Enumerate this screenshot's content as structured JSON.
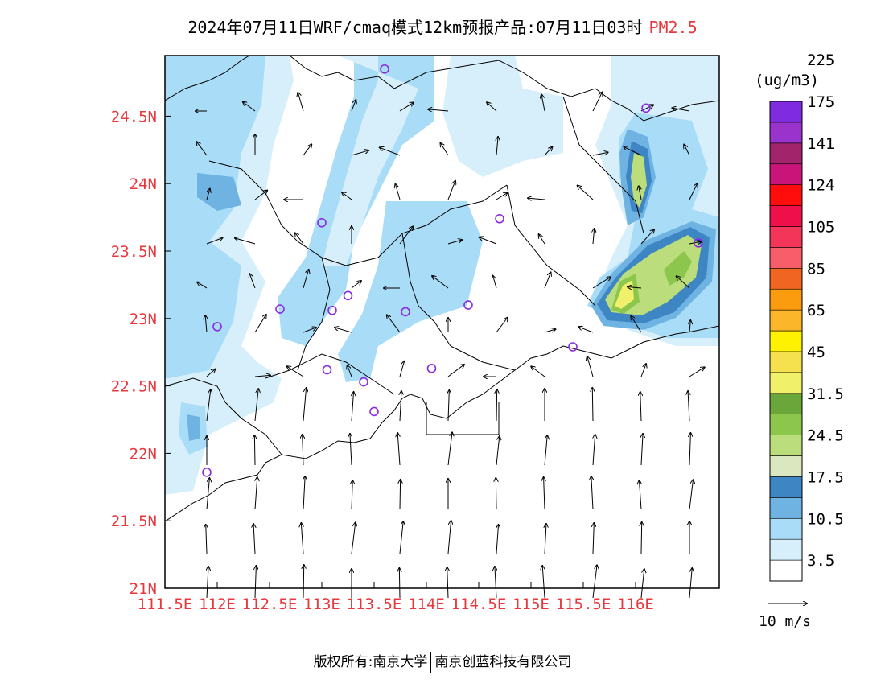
{
  "title": {
    "main": "2024年07月11日WRF/cmaq模式12km预报产品:07月11日03时",
    "species": "PM2.5"
  },
  "map": {
    "lon_range": [
      111.5,
      116.8
    ],
    "lat_range": [
      21.0,
      24.95
    ],
    "lon_ticks": [
      "111.5E",
      "112E",
      "112.5E",
      "113E",
      "113.5E",
      "114E",
      "114.5E",
      "115E",
      "115.5E",
      "116E"
    ],
    "lat_ticks": [
      "21N",
      "21.5N",
      "22N",
      "22.5N",
      "23N",
      "23.5N",
      "24N",
      "24.5N"
    ],
    "tick_color": "#e8383d",
    "stations": [
      {
        "lon": 113.6,
        "lat": 24.85
      },
      {
        "lon": 116.1,
        "lat": 24.56
      },
      {
        "lon": 113.0,
        "lat": 23.71
      },
      {
        "lon": 114.7,
        "lat": 23.74
      },
      {
        "lon": 116.6,
        "lat": 23.56
      },
      {
        "lon": 113.25,
        "lat": 23.17
      },
      {
        "lon": 112.6,
        "lat": 23.07
      },
      {
        "lon": 113.1,
        "lat": 23.06
      },
      {
        "lon": 113.8,
        "lat": 23.05
      },
      {
        "lon": 114.4,
        "lat": 23.1
      },
      {
        "lon": 112.0,
        "lat": 22.94
      },
      {
        "lon": 113.05,
        "lat": 22.62
      },
      {
        "lon": 113.4,
        "lat": 22.53
      },
      {
        "lon": 114.05,
        "lat": 22.63
      },
      {
        "lon": 115.4,
        "lat": 22.79
      },
      {
        "lon": 113.5,
        "lat": 22.31
      },
      {
        "lon": 111.9,
        "lat": 21.86
      }
    ]
  },
  "legend": {
    "unit": "(ug/m3)",
    "colors": [
      "#ffffff",
      "#d7effa",
      "#a8dcf7",
      "#6fb3e3",
      "#3d86c3",
      "#dbe8bf",
      "#bcdd7b",
      "#8cc64c",
      "#6aa63a",
      "#f0f06a",
      "#f5e14d",
      "#fff200",
      "#fbb62a",
      "#fb9b0e",
      "#f16523",
      "#f75e6a",
      "#f4355a",
      "#ef0f4b",
      "#ff0d0d",
      "#c9157a",
      "#a2246b",
      "#9933cc",
      "#7f2be0"
    ],
    "labels": [
      "3.5",
      "10.5",
      "17.5",
      "24.5",
      "31.5",
      "45",
      "65",
      "85",
      "105",
      "124",
      "141",
      "175",
      "225"
    ],
    "wind_reference": "10 m/s"
  },
  "footer": {
    "left": "版权所有:南京大学",
    "right": "南京创蓝科技有限公司"
  }
}
